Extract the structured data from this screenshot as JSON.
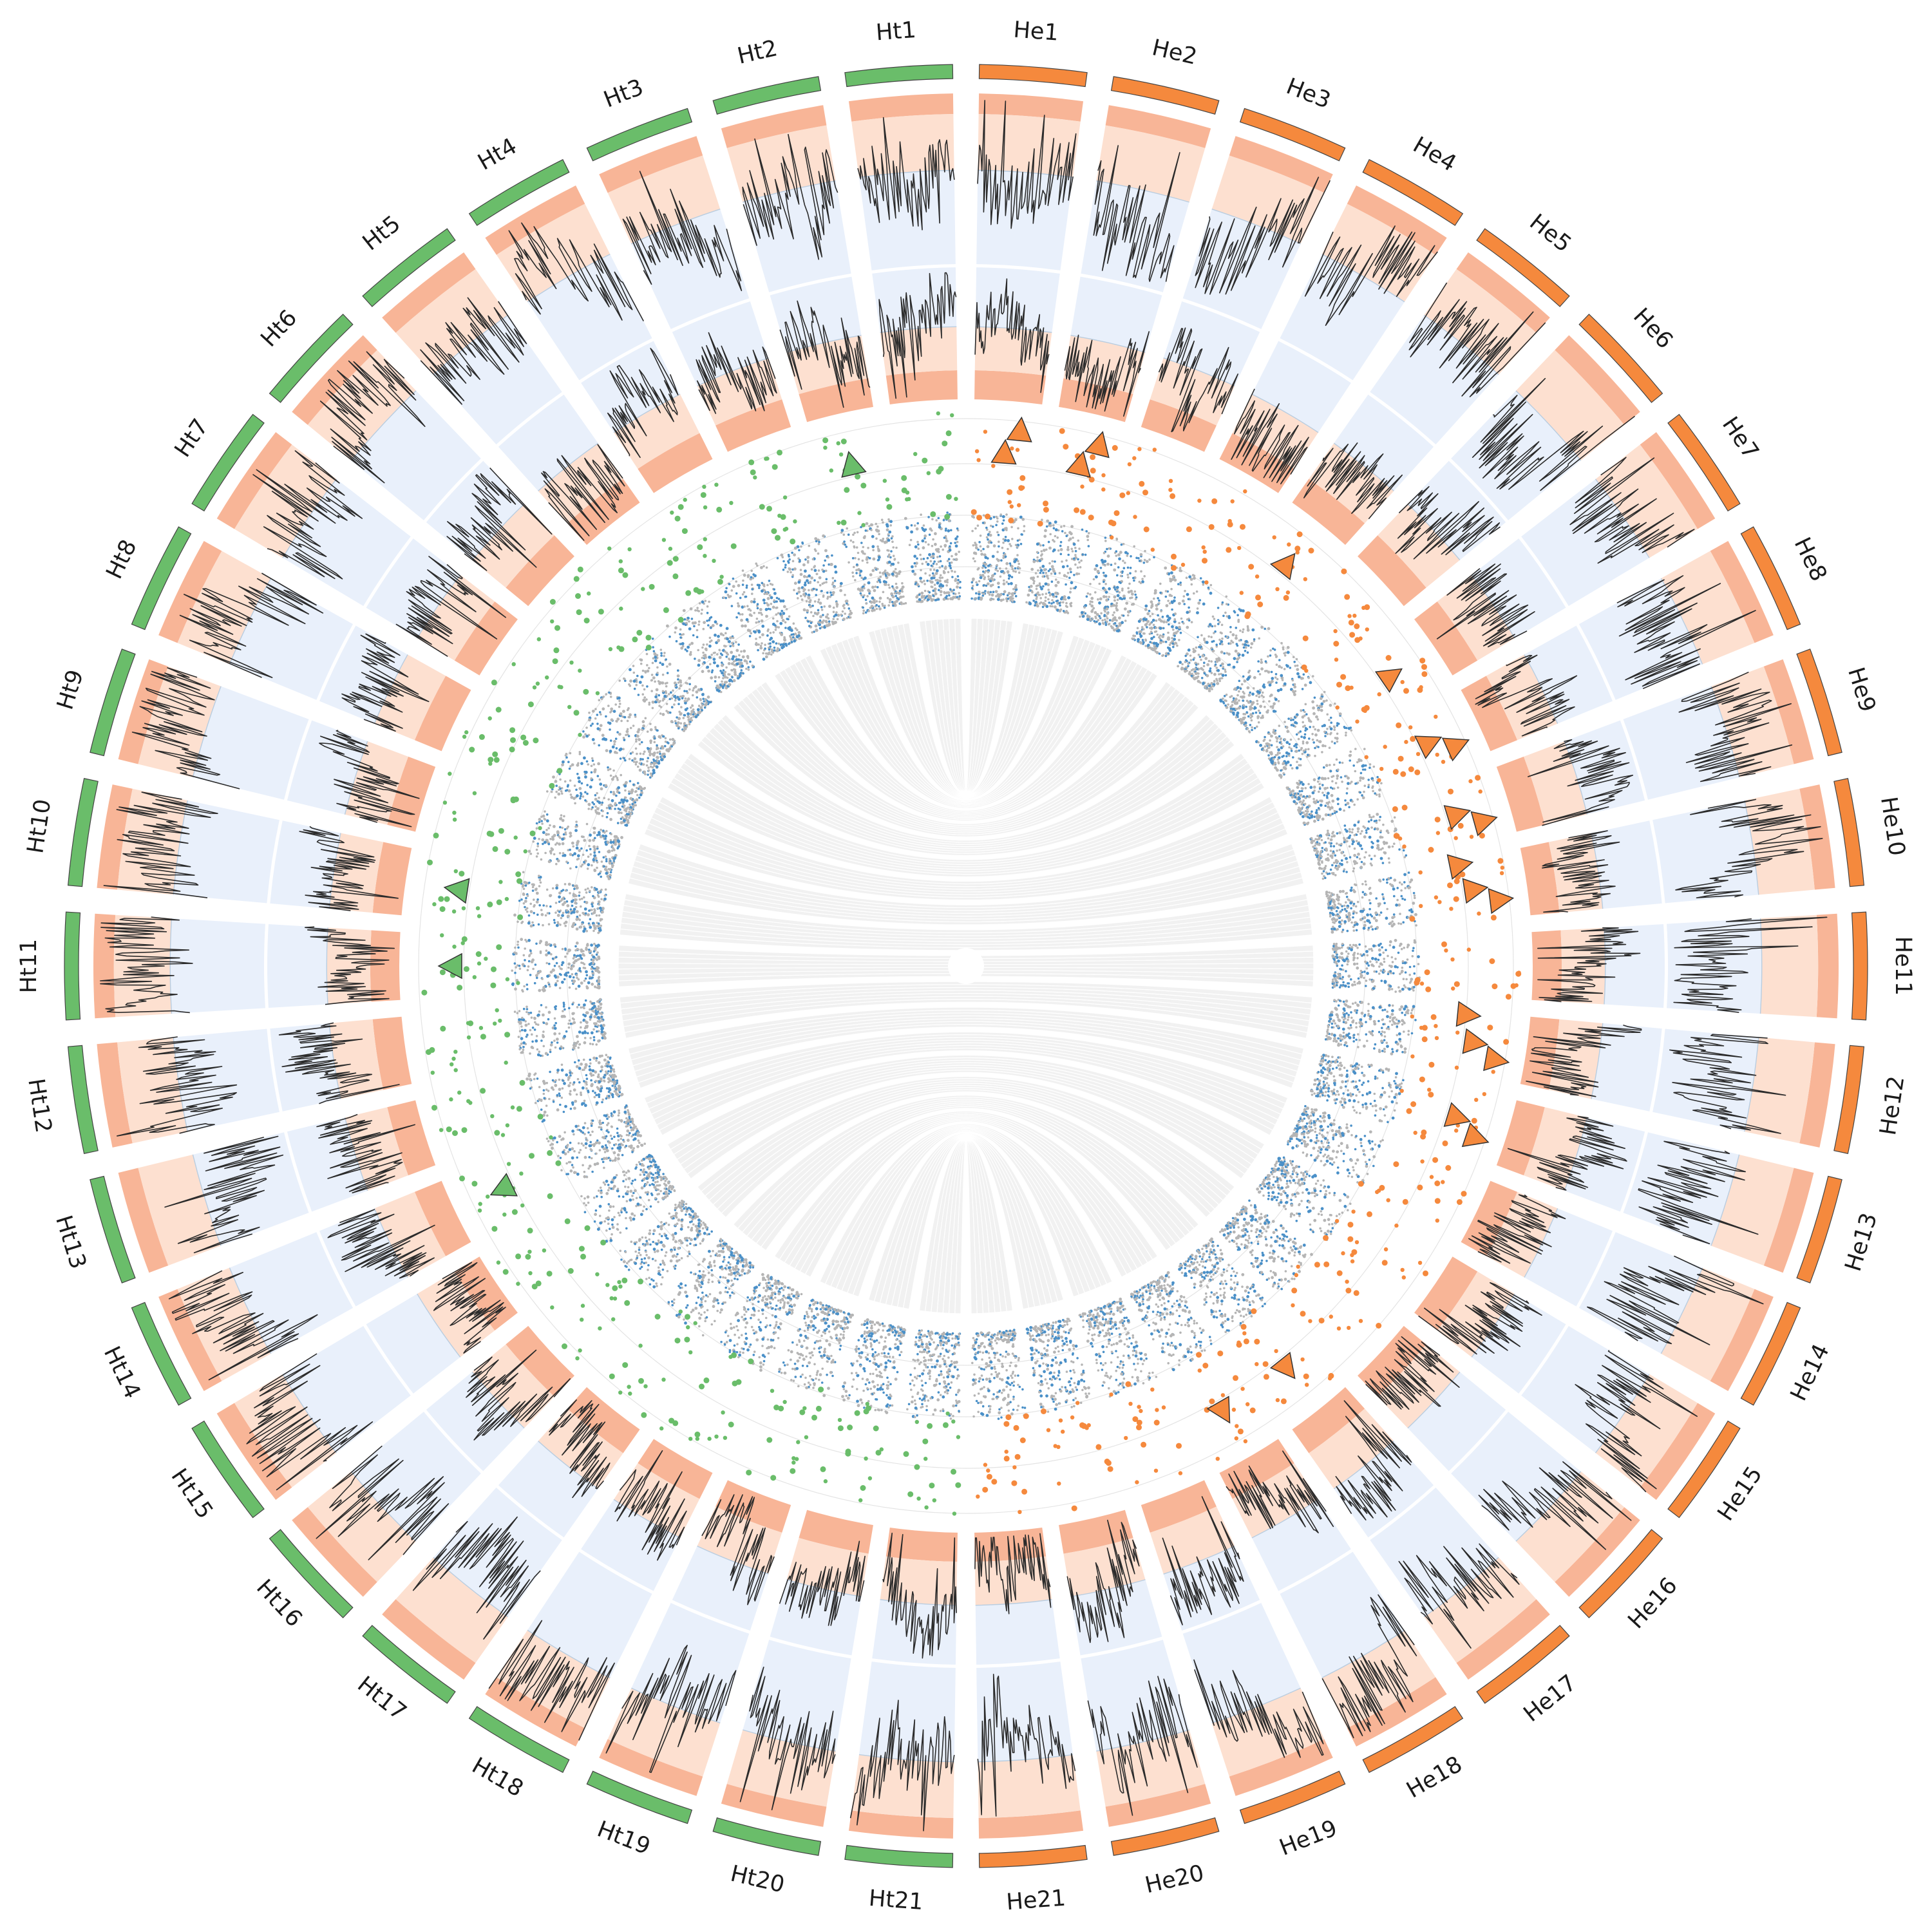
{
  "colors": {
    "ht": "#6abd6a",
    "he": "#f5893d",
    "band_dark": "#f8b597",
    "band_light": "#fde0d0",
    "band_blue": "#e9f0fb",
    "sep_line": "#b9cde0",
    "dot_grey": "#b5b5b5",
    "dot_blue": "#4a90c8",
    "link": "#e6e6e6",
    "ring_outline": "#444444"
  },
  "chromosomes": [
    {
      "id": "Ht1",
      "group": "ht"
    },
    {
      "id": "Ht2",
      "group": "ht"
    },
    {
      "id": "Ht3",
      "group": "ht"
    },
    {
      "id": "Ht4",
      "group": "ht"
    },
    {
      "id": "Ht5",
      "group": "ht"
    },
    {
      "id": "Ht6",
      "group": "ht"
    },
    {
      "id": "Ht7",
      "group": "ht"
    },
    {
      "id": "Ht8",
      "group": "ht"
    },
    {
      "id": "Ht9",
      "group": "ht"
    },
    {
      "id": "Ht10",
      "group": "ht"
    },
    {
      "id": "Ht11",
      "group": "ht"
    },
    {
      "id": "Ht12",
      "group": "ht"
    },
    {
      "id": "Ht13",
      "group": "ht"
    },
    {
      "id": "Ht14",
      "group": "ht"
    },
    {
      "id": "Ht15",
      "group": "ht"
    },
    {
      "id": "Ht16",
      "group": "ht"
    },
    {
      "id": "Ht17",
      "group": "ht"
    },
    {
      "id": "Ht18",
      "group": "ht"
    },
    {
      "id": "Ht19",
      "group": "ht"
    },
    {
      "id": "Ht20",
      "group": "ht"
    },
    {
      "id": "Ht21",
      "group": "ht"
    },
    {
      "id": "He21",
      "group": "he"
    },
    {
      "id": "He20",
      "group": "he"
    },
    {
      "id": "He19",
      "group": "he"
    },
    {
      "id": "He18",
      "group": "he"
    },
    {
      "id": "He17",
      "group": "he"
    },
    {
      "id": "He16",
      "group": "he"
    },
    {
      "id": "He15",
      "group": "he"
    },
    {
      "id": "He14",
      "group": "he"
    },
    {
      "id": "He13",
      "group": "he"
    },
    {
      "id": "He12",
      "group": "he"
    },
    {
      "id": "He11",
      "group": "he"
    },
    {
      "id": "He10",
      "group": "he"
    },
    {
      "id": "He9",
      "group": "he"
    },
    {
      "id": "He8",
      "group": "he"
    },
    {
      "id": "He7",
      "group": "he"
    },
    {
      "id": "He6",
      "group": "he"
    },
    {
      "id": "He5",
      "group": "he"
    },
    {
      "id": "He4",
      "group": "he"
    },
    {
      "id": "He3",
      "group": "he"
    },
    {
      "id": "He2",
      "group": "he"
    },
    {
      "id": "He1",
      "group": "he"
    }
  ],
  "highlighted_loci": [
    {
      "chr": "Ht2",
      "group": "ht"
    },
    {
      "chr": "Ht10",
      "group": "ht"
    },
    {
      "chr": "Ht11",
      "group": "ht"
    },
    {
      "chr": "Ht14",
      "group": "ht"
    },
    {
      "chr": "He1",
      "group": "he"
    },
    {
      "chr": "He1",
      "group": "he"
    },
    {
      "chr": "He2",
      "group": "he"
    },
    {
      "chr": "He2",
      "group": "he"
    },
    {
      "chr": "He5",
      "group": "he"
    },
    {
      "chr": "He7",
      "group": "he"
    },
    {
      "chr": "He8",
      "group": "he"
    },
    {
      "chr": "He8",
      "group": "he"
    },
    {
      "chr": "He9",
      "group": "he"
    },
    {
      "chr": "He9",
      "group": "he"
    },
    {
      "chr": "He10",
      "group": "he"
    },
    {
      "chr": "He10",
      "group": "he"
    },
    {
      "chr": "He10",
      "group": "he"
    },
    {
      "chr": "He12",
      "group": "he"
    },
    {
      "chr": "He12",
      "group": "he"
    },
    {
      "chr": "He12",
      "group": "he"
    },
    {
      "chr": "He13",
      "group": "he"
    },
    {
      "chr": "He13",
      "group": "he"
    },
    {
      "chr": "He17",
      "group": "he"
    },
    {
      "chr": "He18",
      "group": "he"
    }
  ]
}
